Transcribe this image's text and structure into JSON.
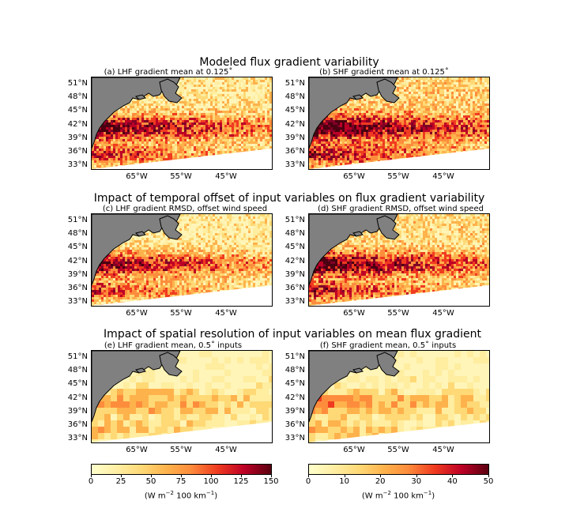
{
  "row_titles": [
    "Modeled flux gradient variability",
    "Impact of temporal offset of input variables on flux gradient variability",
    "Impact of spatial resolution of input variables on mean flux gradient"
  ],
  "panel_titles": {
    "a": "(a) LHF gradient mean at 0.125˚",
    "b": "(b) SHF gradient mean at 0.125˚",
    "c": "(c) LHF gradient RMSD, offset wind speed",
    "d": "(d) SHF gradient RMSD, offset wind speed",
    "e": "(e) LHF gradient mean, 0.5˚ inputs",
    "f": "(f) SHF gradient mean, 0.5˚ inputs"
  },
  "lat_ticks": [
    "51°N",
    "48°N",
    "45°N",
    "42°N",
    "39°N",
    "36°N",
    "33°N"
  ],
  "lon_ticks": [
    "65°W",
    "55°W",
    "45°W"
  ],
  "colorbars": {
    "lhf": {
      "ticks": [
        "0",
        "25",
        "50",
        "75",
        "100",
        "125",
        "150"
      ],
      "range": [
        0,
        150
      ]
    },
    "shf": {
      "ticks": [
        "0",
        "10",
        "20",
        "30",
        "40",
        "50"
      ],
      "range": [
        0,
        50
      ]
    },
    "units_prefix": "(W m",
    "units_sup1": "−2",
    "units_mid": " 100 km",
    "units_sup2": "−1",
    "units_suffix": ")"
  },
  "colors": {
    "land": "#808080",
    "cmap": [
      "#ffffcc",
      "#fed976",
      "#fd8d3c",
      "#e31a1c",
      "#800026",
      "#4a0010"
    ]
  },
  "chart_data": [
    {
      "type": "heatmap",
      "panel": "a",
      "title": "(a) LHF gradient mean at 0.125˚",
      "variable": "LHF gradient mean",
      "resolution_deg": 0.125,
      "colorbar_range": [
        0,
        150
      ],
      "lat_range": [
        "33°N",
        "51°N"
      ],
      "lon_range": [
        "65°W",
        "45°W"
      ]
    },
    {
      "type": "heatmap",
      "panel": "b",
      "title": "(b) SHF gradient mean at 0.125˚",
      "variable": "SHF gradient mean",
      "resolution_deg": 0.125,
      "colorbar_range": [
        0,
        50
      ],
      "lat_range": [
        "33°N",
        "51°N"
      ],
      "lon_range": [
        "65°W",
        "45°W"
      ]
    },
    {
      "type": "heatmap",
      "panel": "c",
      "title": "(c) LHF gradient RMSD, offset wind speed",
      "variable": "LHF gradient RMSD",
      "colorbar_range": [
        0,
        150
      ],
      "lat_range": [
        "33°N",
        "51°N"
      ],
      "lon_range": [
        "65°W",
        "45°W"
      ]
    },
    {
      "type": "heatmap",
      "panel": "d",
      "title": "(d) SHF gradient RMSD, offset wind speed",
      "variable": "SHF gradient RMSD",
      "colorbar_range": [
        0,
        50
      ],
      "lat_range": [
        "33°N",
        "51°N"
      ],
      "lon_range": [
        "65°W",
        "45°W"
      ]
    },
    {
      "type": "heatmap",
      "panel": "e",
      "title": "(e) LHF gradient mean, 0.5˚ inputs",
      "variable": "LHF gradient mean",
      "resolution_deg": 0.5,
      "colorbar_range": [
        0,
        150
      ],
      "lat_range": [
        "33°N",
        "51°N"
      ],
      "lon_range": [
        "65°W",
        "45°W"
      ]
    },
    {
      "type": "heatmap",
      "panel": "f",
      "title": "(f) SHF gradient mean, 0.5˚ inputs",
      "variable": "SHF gradient mean",
      "resolution_deg": 0.5,
      "colorbar_range": [
        0,
        50
      ],
      "lat_range": [
        "33°N",
        "51°N"
      ],
      "lon_range": [
        "65°W",
        "45°W"
      ]
    }
  ]
}
